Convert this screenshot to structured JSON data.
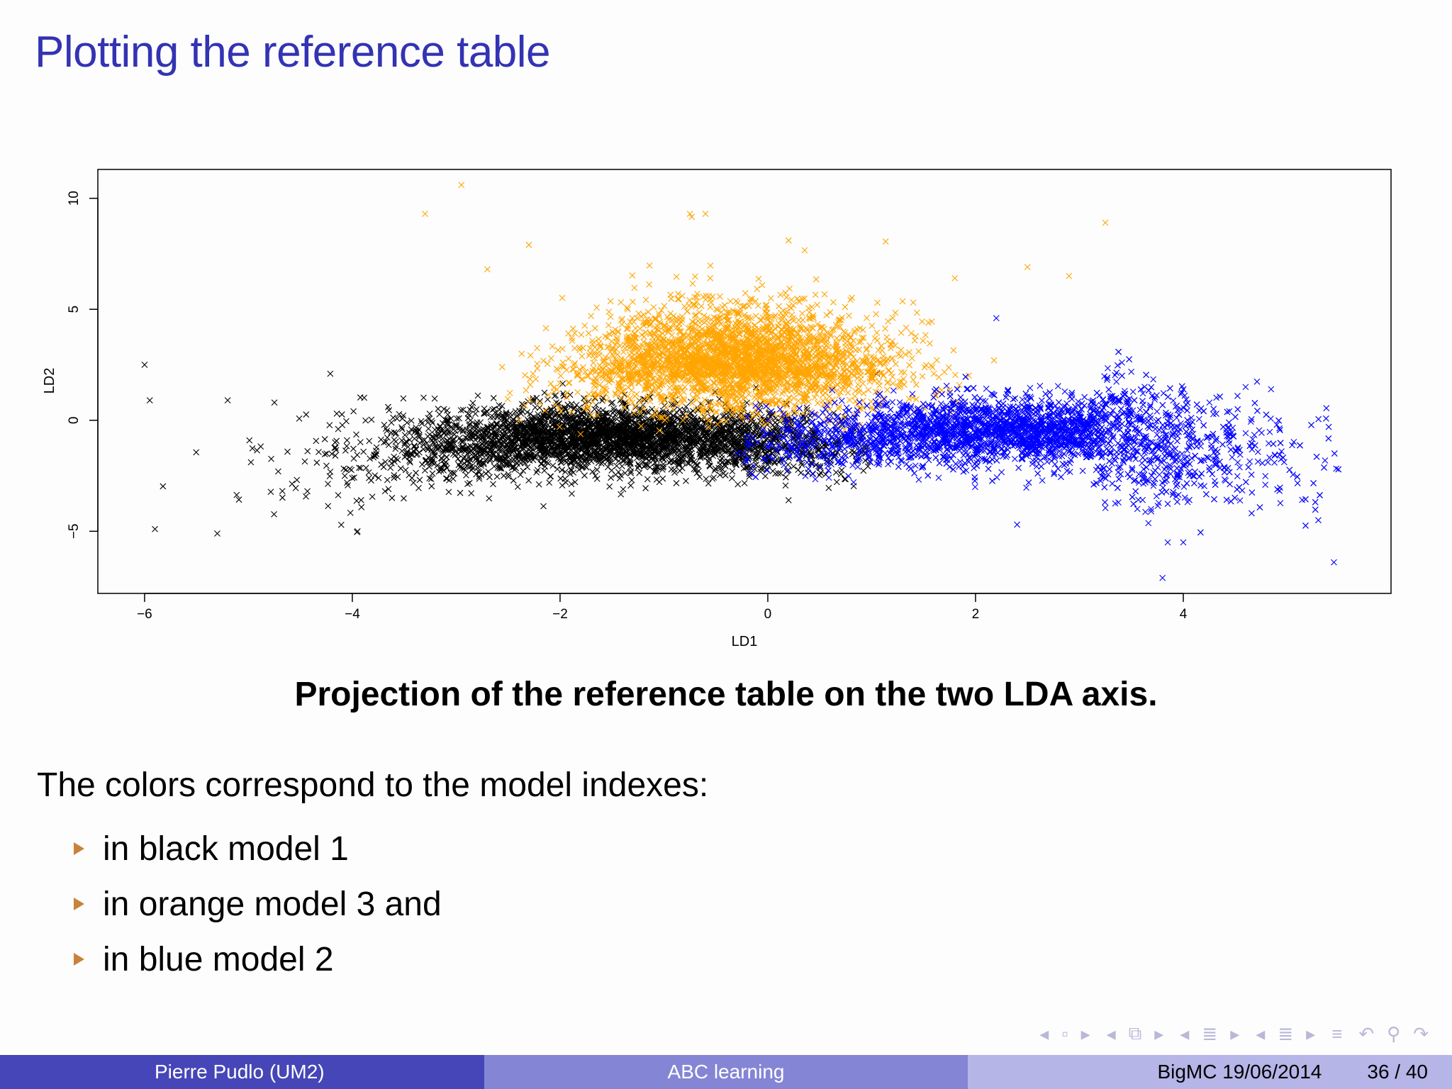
{
  "slide": {
    "title": "Plotting the reference table",
    "caption": "Projection of the reference table on the two LDA axis.",
    "intro": "The colors correspond to the model indexes:",
    "bullets": [
      "in black model 1",
      "in orange model 3 and",
      "in blue model 2"
    ]
  },
  "footer": {
    "author": "Pierre Pudlo  (UM2)",
    "talk_title": "ABC learning",
    "date": "BigMC 19/06/2014",
    "page": "36 / 40"
  },
  "navigation": {
    "icons": [
      "nav-left-icon",
      "nav-frame-icon",
      "nav-right-icon",
      "nav-left-icon",
      "nav-subsection-icon",
      "nav-right-icon",
      "nav-left-icon",
      "nav-section-icon",
      "nav-right-icon",
      "nav-left-icon",
      "nav-doc-icon",
      "nav-right-icon",
      "nav-align-icon",
      "nav-back-icon",
      "nav-search-icon",
      "nav-forward-icon"
    ]
  },
  "colors": {
    "title": "#3333b3",
    "model1": "#000000",
    "model2": "#0000ff",
    "model3": "#ffa500",
    "bullet": "#c8823c"
  },
  "chart_data": {
    "type": "scatter",
    "title": "",
    "xlabel": "LD1",
    "ylabel": "LD2",
    "xlim": [
      -6.45,
      6.0
    ],
    "ylim": [
      -7.8,
      11.3
    ],
    "xticks": [
      -6,
      -4,
      -2,
      0,
      2,
      4
    ],
    "yticks": [
      -5,
      0,
      5,
      10
    ],
    "grid": false,
    "legend": "none",
    "marker": "x",
    "series": [
      {
        "name": "model 1",
        "color": "#000000",
        "n_points": 3500,
        "shape": "arc",
        "center": [
          -1.5,
          -0.8
        ],
        "spread": [
          1.15,
          0.75
        ],
        "x_range": [
          -6.0,
          1.0
        ],
        "outliers": [
          [
            -6.0,
            2.5
          ],
          [
            -5.95,
            0.9
          ],
          [
            -5.9,
            -4.9
          ],
          [
            -5.3,
            -5.1
          ],
          [
            -5.2,
            0.9
          ],
          [
            -4.75,
            0.8
          ],
          [
            -4.15,
            0.3
          ],
          [
            -3.95,
            -5.0
          ],
          [
            0.2,
            -3.6
          ],
          [
            1.05,
            2.1
          ]
        ]
      },
      {
        "name": "model 3",
        "color": "#ffa500",
        "n_points": 3000,
        "shape": "blob",
        "center": [
          -0.3,
          2.0
        ],
        "spread": [
          0.75,
          1.5
        ],
        "x_range": [
          -3.5,
          3.3
        ],
        "outliers": [
          [
            -2.95,
            10.6
          ],
          [
            -3.3,
            9.3
          ],
          [
            -0.75,
            9.3
          ],
          [
            -0.6,
            9.3
          ],
          [
            0.2,
            8.1
          ],
          [
            -2.3,
            7.9
          ],
          [
            3.25,
            8.9
          ],
          [
            -2.7,
            6.8
          ],
          [
            2.5,
            6.9
          ],
          [
            2.9,
            6.5
          ],
          [
            1.8,
            6.4
          ]
        ]
      },
      {
        "name": "model 2",
        "color": "#0000ff",
        "n_points": 4000,
        "shape": "band",
        "center": [
          2.4,
          -0.5
        ],
        "spread": [
          1.2,
          0.75
        ],
        "x_range": [
          -0.3,
          5.5
        ],
        "outliers": [
          [
            5.4,
            -0.3
          ],
          [
            5.3,
            -4.5
          ],
          [
            5.45,
            -6.4
          ],
          [
            3.8,
            -7.1
          ],
          [
            3.85,
            -5.5
          ],
          [
            4.0,
            -5.5
          ],
          [
            2.2,
            4.6
          ],
          [
            4.6,
            1.5
          ],
          [
            2.4,
            -4.7
          ],
          [
            4.9,
            -0.2
          ]
        ]
      }
    ]
  }
}
